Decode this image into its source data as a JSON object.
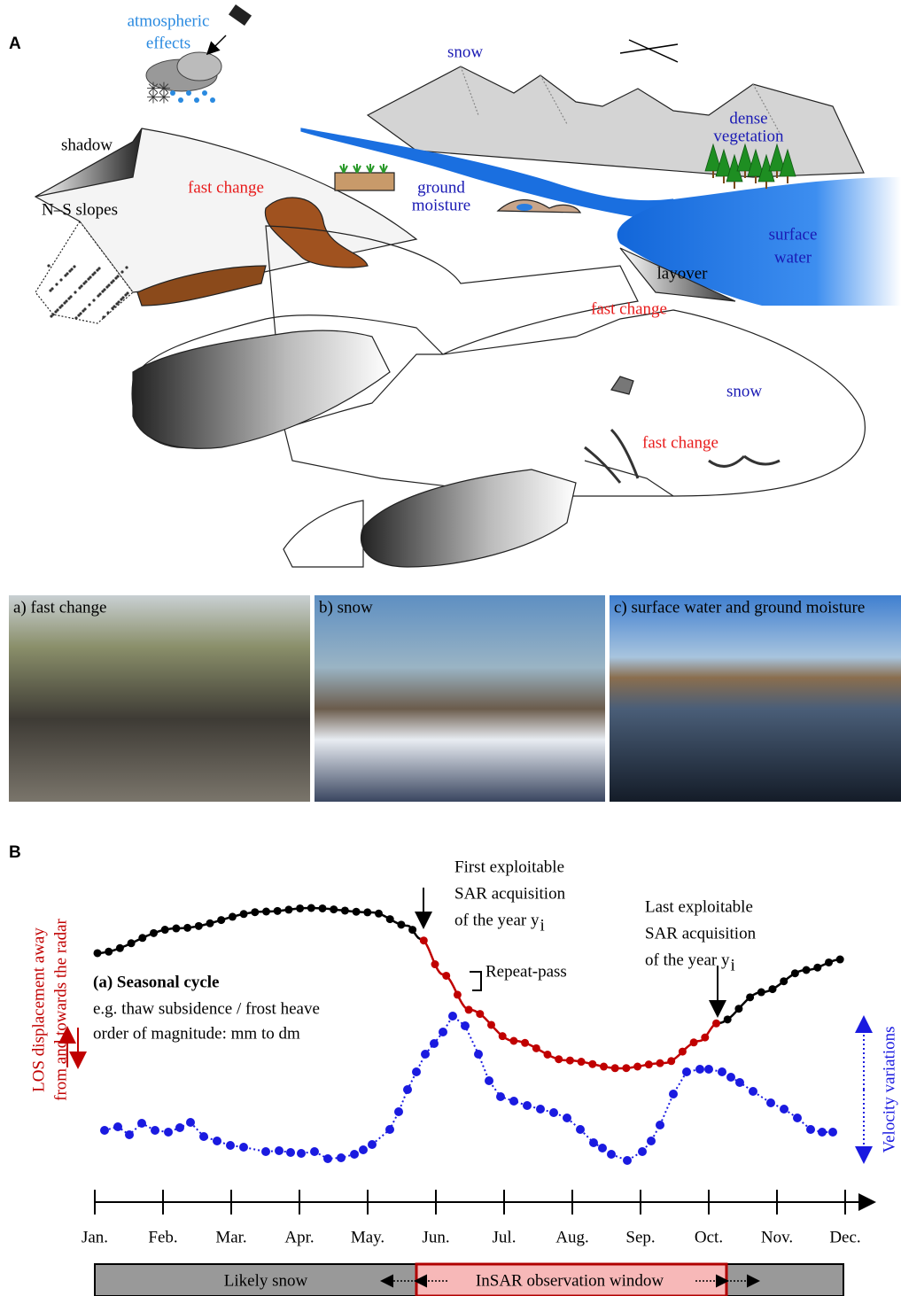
{
  "panel_a": {
    "letter": "A",
    "labels": {
      "atmospheric_effects": [
        "atmospheric",
        "effects"
      ],
      "snow_top": "snow",
      "shadow": "shadow",
      "fast_change_1": "fast change",
      "ns_slopes": "N–S slopes",
      "ground_moisture": [
        "ground",
        "moisture"
      ],
      "dense_vegetation": [
        "dense",
        "vegetation"
      ],
      "surface_water": [
        "surface",
        "water"
      ],
      "layover": "layover",
      "fast_change_2": "fast change",
      "snow_glacier": "snow",
      "fast_change_3": "fast change"
    }
  },
  "photos": [
    "a) fast change",
    "b) snow",
    "c) surface water and ground moisture"
  ],
  "panel_b": {
    "letter": "B",
    "first_acquisition": [
      "First exploitable",
      "SAR acquisition",
      "of the year y"
    ],
    "last_acquisition": [
      "Last exploitable",
      "SAR acquisition",
      "of the year y"
    ],
    "subscript": "i",
    "repeat_pass": "Repeat-pass",
    "seasonal_cycle": {
      "title": "(a) Seasonal cycle",
      "lines": [
        "e.g. thaw subsidence / frost heave",
        "order of magnitude: mm to dm"
      ]
    },
    "y_label": [
      "LOS displacement away",
      "from and towards the radar"
    ],
    "y2_label": "Velocity variations",
    "months": [
      "Jan.",
      "Feb.",
      "Mar.",
      "Apr.",
      "May.",
      "Jun.",
      "Jul.",
      "Aug.",
      "Sep.",
      "Oct.",
      "Nov.",
      "Dec."
    ],
    "likely_snow": "Likely snow",
    "observation_window": "InSAR observation window"
  }
}
